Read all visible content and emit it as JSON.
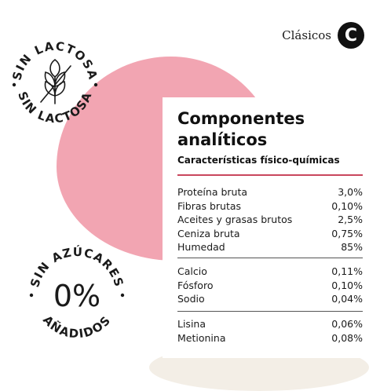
{
  "brand": {
    "label": "Clásicos",
    "badge": "C"
  },
  "stamps": {
    "lactose": {
      "text": "SIN LACTOSA",
      "icon": "crossed-wheat-icon"
    },
    "sugar": {
      "top_text": "SIN AZÚCARES",
      "bottom_text": "AÑADIDOS",
      "center_text": "0%"
    }
  },
  "table": {
    "title_line1": "Componentes",
    "title_line2": "analíticos",
    "subtitle": "Características físico-químicas",
    "groups": [
      [
        {
          "label": "Proteína bruta",
          "value": "3,0%"
        },
        {
          "label": "Fibras brutas",
          "value": "0,10%"
        },
        {
          "label": "Aceites y grasas brutos",
          "value": "2,5%"
        },
        {
          "label": "Ceniza bruta",
          "value": "0,75%"
        },
        {
          "label": "Humedad",
          "value": "85%"
        }
      ],
      [
        {
          "label": "Calcio",
          "value": "0,11%"
        },
        {
          "label": "Fósforo",
          "value": "0,10%"
        },
        {
          "label": "Sodio",
          "value": "0,04%"
        }
      ],
      [
        {
          "label": "Lisina",
          "value": "0,06%"
        },
        {
          "label": "Metionina",
          "value": "0,08%"
        }
      ]
    ]
  },
  "colors": {
    "accent_pink": "#f2a5b2",
    "rule_red": "#c9475d",
    "ink": "#111111"
  }
}
